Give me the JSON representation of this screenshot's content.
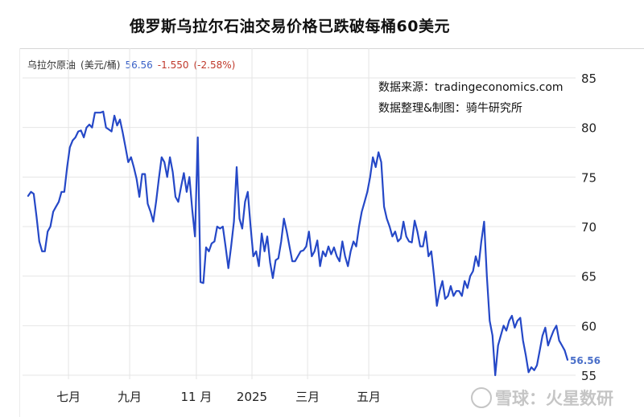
{
  "title": "俄罗斯乌拉尔石油交易价格已跌破每桶60美元",
  "header": {
    "name": "乌拉尔原油",
    "unit": "(美元/桶)",
    "price": "56.56",
    "change": "-1.550",
    "change_pct": "(-2.58%)"
  },
  "source": {
    "line1": "数据来源：tradingeconomics.com",
    "line2": "数据整理&制图：骑牛研究所"
  },
  "watermark": "雪球：火星数研",
  "last_value_label": "56.56",
  "colors": {
    "line": "#2548c7",
    "grid": "#e4e4e4",
    "price_text": "#3b62c7",
    "change_text": "#c0392b"
  },
  "chart_data": {
    "type": "line",
    "title": "俄罗斯乌拉尔石油交易价格已跌破每桶60美元",
    "ylabel": "",
    "xlabel": "",
    "ylim": [
      55,
      85
    ],
    "yticks": [
      55,
      60,
      65,
      70,
      75,
      80,
      85
    ],
    "xtick_labels": [
      "七月",
      "九月",
      "11 月",
      "2025",
      "三月",
      "五月"
    ],
    "xtick_positions": [
      14.5,
      36.5,
      60.5,
      80.5,
      100.5,
      122.5
    ],
    "grid": true,
    "legend": "none",
    "series": [
      {
        "values": [
          73.1,
          73.5,
          73.3,
          71.0,
          68.5,
          67.5,
          67.5,
          69.5,
          70.0,
          71.5,
          72.0,
          72.5,
          73.5,
          73.5,
          76.0,
          78.0,
          78.7,
          79.0,
          79.6,
          79.7,
          79.0,
          80.0,
          80.3,
          80.0,
          81.5,
          81.5,
          81.5,
          81.6,
          80.0,
          79.8,
          79.6,
          81.2,
          80.2,
          80.8,
          79.5,
          78.0,
          76.5,
          77.0,
          76.0,
          74.8,
          73.0,
          75.3,
          75.3,
          72.3,
          71.5,
          70.5,
          72.5,
          74.8,
          77.0,
          76.5,
          75.0,
          77.0,
          75.5,
          73.0,
          72.5,
          74.0,
          75.4,
          73.5,
          75.0,
          71.7,
          69.0,
          79.0,
          64.4,
          64.3,
          67.9,
          67.5,
          68.3,
          68.5,
          70.0,
          69.8,
          70.0,
          68.0,
          65.8,
          68.0,
          70.5,
          76.0,
          70.8,
          69.8,
          72.5,
          73.5,
          70.0,
          67.0,
          67.5,
          66.0,
          69.3,
          67.5,
          69.0,
          66.4,
          64.8,
          66.6,
          66.8,
          68.5,
          70.8,
          69.5,
          68.0,
          66.5,
          66.5,
          67.0,
          67.5,
          67.6,
          68.0,
          69.5,
          67.0,
          67.5,
          68.6,
          66.0,
          67.5,
          67.0,
          68.0,
          67.2,
          67.9,
          67.0,
          66.5,
          68.5,
          67.0,
          66.0,
          67.5,
          68.5,
          68.0,
          70.0,
          71.5,
          72.5,
          73.5,
          75.0,
          77.0,
          76.0,
          77.5,
          76.5,
          72.0,
          70.8,
          70.0,
          69.0,
          69.5,
          68.5,
          68.8,
          70.5,
          69.0,
          68.5,
          68.4,
          70.6,
          69.5,
          68.0,
          68.0,
          69.5,
          67.0,
          67.5,
          65.0,
          62.0,
          63.5,
          64.5,
          62.7,
          63.0,
          64.0,
          63.0,
          63.5,
          63.5,
          63.0,
          64.5,
          63.8,
          65.0,
          65.5,
          67.0,
          66.0,
          68.5,
          70.5,
          65.0,
          60.5,
          59.0,
          55.0,
          58.0,
          59.0,
          60.0,
          59.5,
          60.5,
          61.0,
          59.8,
          60.5,
          60.8,
          58.5,
          57.0,
          55.3,
          55.8,
          55.5,
          56.0,
          57.5,
          59.0,
          59.8,
          58.0,
          58.8,
          59.5,
          60.0,
          58.5,
          58.0,
          57.5,
          56.56
        ]
      }
    ]
  }
}
